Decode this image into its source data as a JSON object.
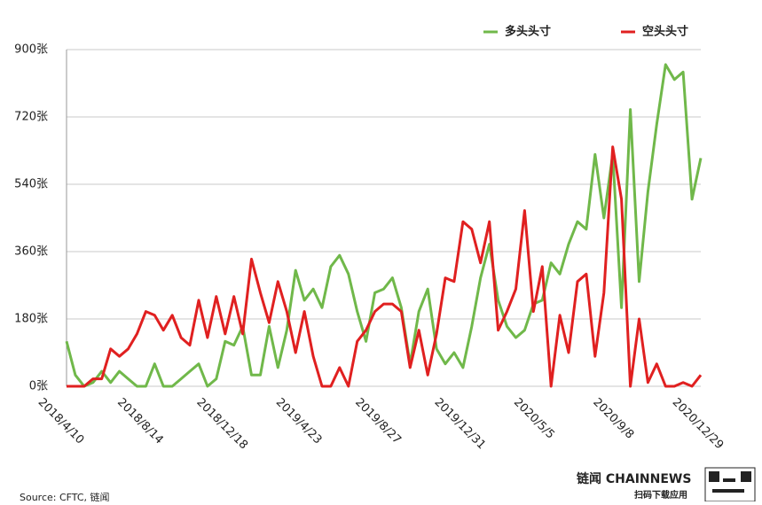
{
  "chart_data": {
    "type": "line",
    "categories": [
      "2018/4/10",
      null,
      null,
      null,
      null,
      null,
      null,
      null,
      null,
      "2018/8/14",
      null,
      null,
      null,
      null,
      null,
      null,
      null,
      null,
      "2018/12/18",
      null,
      null,
      null,
      null,
      null,
      null,
      null,
      null,
      "2019/4/23",
      null,
      null,
      null,
      null,
      null,
      null,
      null,
      null,
      "2019/8/27",
      null,
      null,
      null,
      null,
      null,
      null,
      null,
      null,
      "2019/12/31",
      null,
      null,
      null,
      null,
      null,
      null,
      null,
      null,
      "2020/5/5",
      null,
      null,
      null,
      null,
      null,
      null,
      null,
      null,
      "2020/9/8",
      null,
      null,
      null,
      null,
      null,
      null,
      null,
      null,
      "2020/12/29"
    ],
    "series": [
      {
        "name": "多头头寸",
        "color": "#70b84a",
        "values": [
          120,
          30,
          0,
          10,
          40,
          10,
          40,
          20,
          0,
          0,
          60,
          0,
          0,
          20,
          40,
          60,
          0,
          20,
          120,
          110,
          160,
          30,
          30,
          160,
          50,
          150,
          310,
          230,
          260,
          210,
          320,
          350,
          300,
          200,
          120,
          250,
          260,
          290,
          210,
          60,
          200,
          260,
          100,
          60,
          90,
          50,
          160,
          290,
          380,
          230,
          160,
          130,
          150,
          220,
          230,
          330,
          300,
          380,
          440,
          420,
          620,
          450,
          620,
          210,
          740,
          280,
          520,
          700,
          860,
          820,
          840,
          500,
          610
        ]
      },
      {
        "name": "空头头寸",
        "color": "#e02020",
        "values": [
          0,
          0,
          0,
          20,
          20,
          100,
          80,
          100,
          140,
          200,
          190,
          150,
          190,
          130,
          110,
          230,
          130,
          240,
          140,
          240,
          140,
          340,
          250,
          170,
          280,
          200,
          90,
          200,
          80,
          0,
          0,
          50,
          0,
          120,
          150,
          200,
          220,
          220,
          200,
          50,
          150,
          30,
          140,
          290,
          280,
          440,
          420,
          330,
          440,
          150,
          200,
          260,
          470,
          200,
          320,
          0,
          190,
          90,
          280,
          300,
          80,
          250,
          640,
          500,
          0,
          180,
          10,
          60,
          0,
          0,
          10,
          0,
          30
        ]
      }
    ],
    "ylim": [
      0,
      900
    ],
    "yticks": [
      {
        "value": 0,
        "label": "0张"
      },
      {
        "value": 180,
        "label": "180张"
      },
      {
        "value": 360,
        "label": "360张"
      },
      {
        "value": 540,
        "label": "540张"
      },
      {
        "value": 720,
        "label": "720张"
      },
      {
        "value": 900,
        "label": "900张"
      }
    ],
    "grid": true,
    "legend": "top-right"
  },
  "source": "Source: CFTC, 链闻",
  "logo": {
    "name": "链闻 CHAINNEWS",
    "tagline": "扫码下载应用"
  }
}
